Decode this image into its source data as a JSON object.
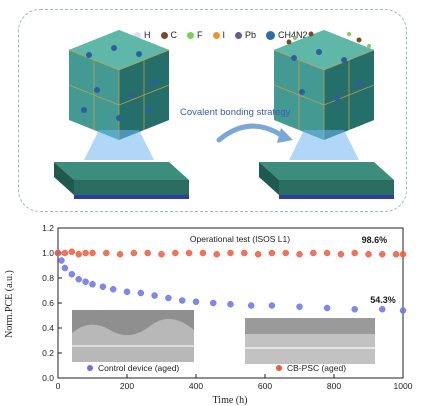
{
  "legend": {
    "items": [
      {
        "label": "H",
        "color": "#d9e1ea"
      },
      {
        "label": "C",
        "color": "#7a4a2c"
      },
      {
        "label": "F",
        "color": "#7ccf5a"
      },
      {
        "label": "I",
        "color": "#e39a2c"
      },
      {
        "label": "Pb",
        "color": "#6a5c88"
      },
      {
        "label": "CH4N2",
        "color": "#2d6da6"
      }
    ]
  },
  "strategy_label": "Covalent bonding strategy",
  "chart_data": {
    "type": "scatter",
    "title": "Operational test (ISOS L1)",
    "xlabel": "Time (h)",
    "ylabel": "Norm.PCE (a.u.)",
    "xlim": [
      0,
      1000
    ],
    "ylim": [
      0.0,
      1.2
    ],
    "xticks": [
      "0",
      "200",
      "400",
      "600",
      "800",
      "1000"
    ],
    "yticks": [
      "0.0",
      "0.2",
      "0.4",
      "0.6",
      "0.8",
      "1.0",
      "1.2"
    ],
    "annotations": [
      {
        "text": "98.6%",
        "x": 880,
        "y": 1.08,
        "color": "#1a1a1a"
      },
      {
        "text": "54.3%",
        "x": 905,
        "y": 0.6,
        "color": "#1a1a1a"
      }
    ],
    "legend": [
      {
        "name": "Control device (aged)",
        "color": "#6a73e6"
      },
      {
        "name": "CB-PSC (aged)",
        "color": "#f05a3c"
      }
    ],
    "series": [
      {
        "name": "Control device (aged)",
        "color": "#6a73e6",
        "x": [
          0,
          10,
          20,
          40,
          60,
          80,
          100,
          130,
          160,
          200,
          240,
          280,
          320,
          360,
          400,
          450,
          500,
          560,
          620,
          700,
          780,
          860,
          940,
          1000
        ],
        "y": [
          1.0,
          0.94,
          0.88,
          0.83,
          0.79,
          0.77,
          0.75,
          0.73,
          0.71,
          0.69,
          0.68,
          0.66,
          0.64,
          0.62,
          0.61,
          0.6,
          0.59,
          0.58,
          0.58,
          0.57,
          0.56,
          0.55,
          0.55,
          0.54
        ]
      },
      {
        "name": "CB-PSC (aged)",
        "color": "#f05a3c",
        "x": [
          0,
          20,
          40,
          60,
          80,
          100,
          140,
          180,
          220,
          260,
          300,
          340,
          380,
          420,
          460,
          500,
          540,
          580,
          620,
          660,
          700,
          740,
          780,
          820,
          860,
          900,
          940,
          980,
          1000
        ],
        "y": [
          1.0,
          1.0,
          1.01,
          0.99,
          1.0,
          1.0,
          1.0,
          0.99,
          1.0,
          1.0,
          0.99,
          1.0,
          1.0,
          1.0,
          0.99,
          1.0,
          1.0,
          0.99,
          1.0,
          1.0,
          0.99,
          1.0,
          1.0,
          0.99,
          1.0,
          0.99,
          0.99,
          0.99,
          0.99
        ]
      }
    ]
  }
}
